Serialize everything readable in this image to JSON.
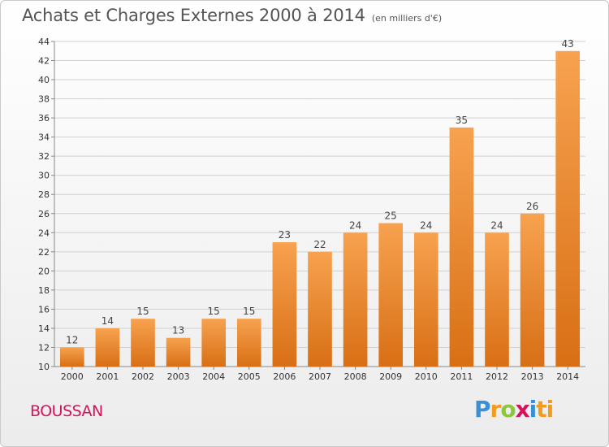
{
  "header": {
    "title": "Achats et Charges Externes 2000 à 2014",
    "subtitle": "(en milliers d'€)"
  },
  "location": "BOUSSAN",
  "brand": {
    "letters": [
      "P",
      "r",
      "o",
      "x",
      "i",
      "ti"
    ]
  },
  "colors": {
    "bar_light": "#f7a24f",
    "bar_dark": "#d86f15",
    "grid": "#d0d0d0",
    "axis": "#888888",
    "title": "#555555",
    "location": "#d4145a"
  },
  "chart_data": {
    "type": "bar",
    "title": "Achats et Charges Externes 2000 à 2014",
    "subtitle": "(en milliers d'€)",
    "categories": [
      "2000",
      "2001",
      "2002",
      "2003",
      "2004",
      "2005",
      "2006",
      "2007",
      "2008",
      "2009",
      "2010",
      "2011",
      "2012",
      "2013",
      "2014"
    ],
    "values": [
      12,
      14,
      15,
      13,
      15,
      15,
      23,
      22,
      24,
      25,
      24,
      35,
      24,
      26,
      43
    ],
    "ylim": [
      10,
      44
    ],
    "yticks": [
      10,
      12,
      14,
      16,
      18,
      20,
      22,
      24,
      26,
      28,
      30,
      32,
      34,
      36,
      38,
      40,
      42,
      44
    ],
    "grid": true,
    "legend": "none"
  }
}
